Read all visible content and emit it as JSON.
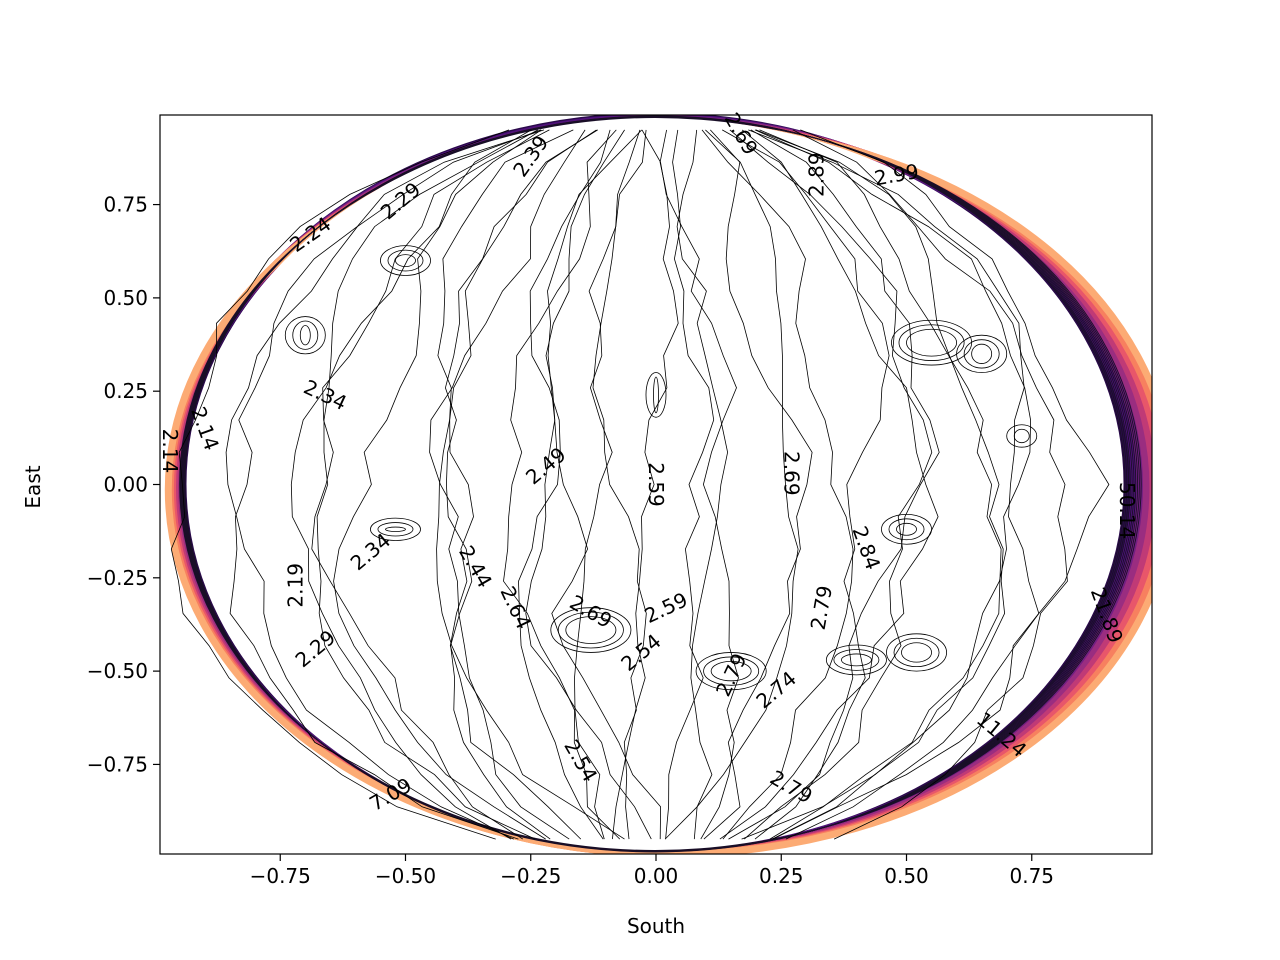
{
  "chart_data": {
    "type": "contour",
    "xlabel": "South",
    "ylabel": "East",
    "xlim": [
      -0.99,
      0.99
    ],
    "ylim": [
      -0.99,
      0.99
    ],
    "xticks": [
      -0.75,
      -0.5,
      -0.25,
      0.0,
      0.25,
      0.5,
      0.75
    ],
    "xtick_labels": [
      "−0.75",
      "−0.50",
      "−0.25",
      "0.00",
      "0.25",
      "0.50",
      "0.75"
    ],
    "yticks": [
      0.75,
      0.5,
      0.25,
      0.0,
      -0.25,
      -0.5,
      -0.75
    ],
    "ytick_labels": [
      "0.75",
      "0.50",
      "0.25",
      "0.00",
      "−0.25",
      "−0.50",
      "−0.75"
    ],
    "colormap": "magma",
    "rim_colors": [
      "#2a0a4a",
      "#4f117b",
      "#721f81",
      "#9a2d80",
      "#c03a76",
      "#e8566a",
      "#f7805f",
      "#fcab74"
    ],
    "grid": false,
    "contour_labels": [
      {
        "text": "2.39",
        "x": -0.25,
        "y": 0.88,
        "rotation": 55
      },
      {
        "text": "2.69",
        "x": 0.17,
        "y": 0.94,
        "rotation": -60
      },
      {
        "text": "2.89",
        "x": 0.32,
        "y": 0.83,
        "rotation": 90
      },
      {
        "text": "2.99",
        "x": 0.48,
        "y": 0.83,
        "rotation": 10
      },
      {
        "text": "2.29",
        "x": -0.51,
        "y": 0.76,
        "rotation": 40
      },
      {
        "text": "2.24",
        "x": -0.69,
        "y": 0.67,
        "rotation": 35
      },
      {
        "text": "2.34",
        "x": -0.66,
        "y": 0.24,
        "rotation": -25
      },
      {
        "text": "2.14",
        "x": -0.9,
        "y": 0.15,
        "rotation": -70
      },
      {
        "text": "2.14",
        "x": -0.97,
        "y": 0.09,
        "rotation": -90
      },
      {
        "text": "2.49",
        "x": -0.22,
        "y": 0.05,
        "rotation": 40
      },
      {
        "text": "2.59",
        "x": 0.0,
        "y": 0.0,
        "rotation": -90
      },
      {
        "text": "2.69",
        "x": 0.27,
        "y": 0.03,
        "rotation": -90
      },
      {
        "text": "2.84",
        "x": 0.42,
        "y": -0.17,
        "rotation": -70
      },
      {
        "text": "2.34",
        "x": -0.57,
        "y": -0.18,
        "rotation": 40
      },
      {
        "text": "2.44",
        "x": -0.36,
        "y": -0.22,
        "rotation": -60
      },
      {
        "text": "2.19",
        "x": -0.72,
        "y": -0.27,
        "rotation": 90
      },
      {
        "text": "2.64",
        "x": -0.28,
        "y": -0.33,
        "rotation": -65
      },
      {
        "text": "2.69",
        "x": -0.13,
        "y": -0.34,
        "rotation": -30
      },
      {
        "text": "2.59",
        "x": 0.02,
        "y": -0.33,
        "rotation": 25
      },
      {
        "text": "2.79",
        "x": 0.33,
        "y": -0.33,
        "rotation": 80
      },
      {
        "text": "2.29",
        "x": -0.68,
        "y": -0.44,
        "rotation": 40
      },
      {
        "text": "2.54",
        "x": -0.03,
        "y": -0.45,
        "rotation": 40
      },
      {
        "text": "2.79",
        "x": 0.15,
        "y": -0.51,
        "rotation": 65
      },
      {
        "text": "2.74",
        "x": 0.24,
        "y": -0.55,
        "rotation": 40
      },
      {
        "text": "2.54",
        "x": -0.15,
        "y": -0.74,
        "rotation": -60
      },
      {
        "text": "2.79",
        "x": 0.27,
        "y": -0.81,
        "rotation": -30
      },
      {
        "text": "7.09",
        "x": -0.53,
        "y": -0.83,
        "rotation": 30
      },
      {
        "text": "11.24",
        "x": 0.69,
        "y": -0.67,
        "rotation": -40
      },
      {
        "text": "21.89",
        "x": 0.9,
        "y": -0.35,
        "rotation": -70
      },
      {
        "text": "50.14",
        "x": 0.94,
        "y": -0.07,
        "rotation": -90
      }
    ]
  }
}
